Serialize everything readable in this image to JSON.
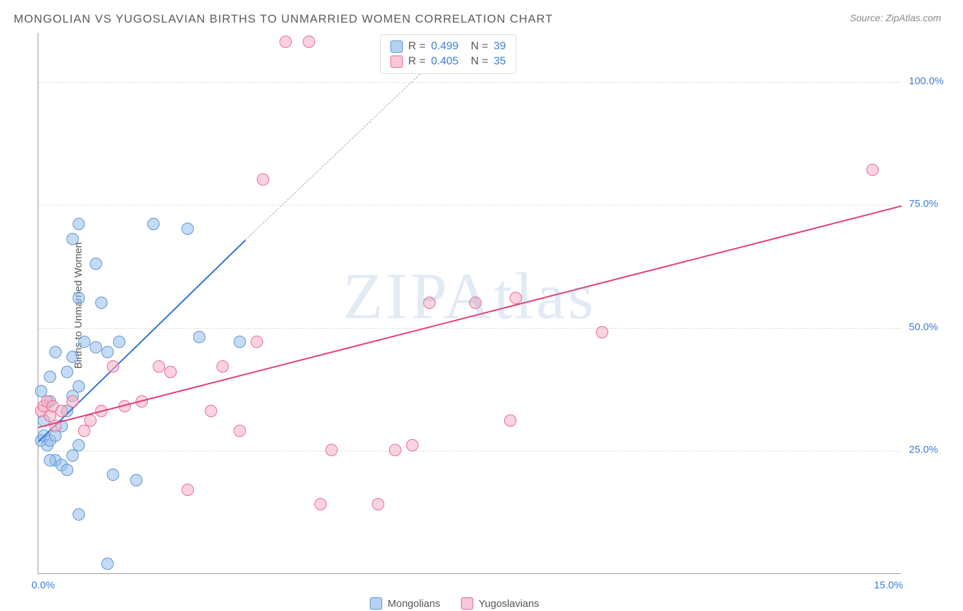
{
  "title": "MONGOLIAN VS YUGOSLAVIAN BIRTHS TO UNMARRIED WOMEN CORRELATION CHART",
  "source": "Source: ZipAtlas.com",
  "ylabel": "Births to Unmarried Women",
  "watermark": "ZIPAtlas",
  "chart": {
    "type": "scatter",
    "xlim": [
      0,
      15
    ],
    "ylim": [
      0,
      110
    ],
    "y_ticks": [
      25,
      50,
      75,
      100
    ],
    "y_tick_labels": [
      "25.0%",
      "50.0%",
      "75.0%",
      "100.0%"
    ],
    "x_ticks": [
      0,
      15
    ],
    "x_tick_labels": [
      "0.0%",
      "15.0%"
    ],
    "gridline_color": "#dddddd",
    "axis_color": "#999999",
    "plot_bg": "#ffffff",
    "marker_radius": 9,
    "series": [
      {
        "name": "Mongolians",
        "fill": "rgba(150,190,235,0.55)",
        "stroke": "#5a95d8",
        "r": "0.499",
        "n": "39",
        "trend": {
          "x1": 0,
          "y1": 27,
          "x2": 3.6,
          "y2": 68,
          "color": "#2e6fd4",
          "width": 2
        },
        "trend_ext": {
          "x1": 3.6,
          "y1": 68,
          "x2": 7.2,
          "y2": 108
        },
        "points": [
          [
            0.05,
            27
          ],
          [
            0.1,
            28
          ],
          [
            0.15,
            26
          ],
          [
            0.2,
            27
          ],
          [
            0.1,
            31
          ],
          [
            0.2,
            35
          ],
          [
            0.05,
            37
          ],
          [
            0.3,
            23
          ],
          [
            0.4,
            22
          ],
          [
            0.5,
            21
          ],
          [
            0.6,
            24
          ],
          [
            0.7,
            26
          ],
          [
            0.3,
            28
          ],
          [
            0.4,
            30
          ],
          [
            0.5,
            33
          ],
          [
            0.6,
            36
          ],
          [
            0.7,
            38
          ],
          [
            0.2,
            40
          ],
          [
            0.3,
            45
          ],
          [
            0.5,
            41
          ],
          [
            0.6,
            44
          ],
          [
            0.8,
            47
          ],
          [
            1.0,
            46
          ],
          [
            1.2,
            45
          ],
          [
            1.4,
            47
          ],
          [
            0.7,
            56
          ],
          [
            1.1,
            55
          ],
          [
            1.3,
            20
          ],
          [
            1.7,
            19
          ],
          [
            0.7,
            71
          ],
          [
            1.0,
            63
          ],
          [
            2.0,
            71
          ],
          [
            2.6,
            70
          ],
          [
            2.8,
            48
          ],
          [
            3.5,
            47
          ],
          [
            0.7,
            12
          ],
          [
            0.6,
            68
          ],
          [
            1.2,
            2
          ],
          [
            0.2,
            23
          ]
        ]
      },
      {
        "name": "Yugoslavians",
        "fill": "rgba(245,175,195,0.55)",
        "stroke": "#e76a95",
        "r": "0.405",
        "n": "35",
        "trend": {
          "x1": 0,
          "y1": 30,
          "x2": 15,
          "y2": 75,
          "color": "#e73a78",
          "width": 2
        },
        "points": [
          [
            0.05,
            33
          ],
          [
            0.1,
            34
          ],
          [
            0.15,
            35
          ],
          [
            0.2,
            32
          ],
          [
            0.25,
            34
          ],
          [
            0.3,
            30
          ],
          [
            0.4,
            33
          ],
          [
            0.6,
            35
          ],
          [
            0.8,
            29
          ],
          [
            0.9,
            31
          ],
          [
            1.1,
            33
          ],
          [
            1.3,
            42
          ],
          [
            1.5,
            34
          ],
          [
            1.8,
            35
          ],
          [
            2.1,
            42
          ],
          [
            2.3,
            41
          ],
          [
            2.6,
            17
          ],
          [
            3.0,
            33
          ],
          [
            3.2,
            42
          ],
          [
            3.5,
            29
          ],
          [
            3.8,
            47
          ],
          [
            3.9,
            80
          ],
          [
            4.3,
            108
          ],
          [
            4.7,
            108
          ],
          [
            4.9,
            14
          ],
          [
            5.1,
            25
          ],
          [
            5.9,
            14
          ],
          [
            6.2,
            25
          ],
          [
            6.5,
            26
          ],
          [
            6.8,
            55
          ],
          [
            7.6,
            55
          ],
          [
            8.2,
            31
          ],
          [
            8.3,
            56
          ],
          [
            9.8,
            49
          ],
          [
            14.5,
            82
          ]
        ]
      }
    ]
  },
  "legend_bottom": [
    "Mongolians",
    "Yugoslavians"
  ]
}
